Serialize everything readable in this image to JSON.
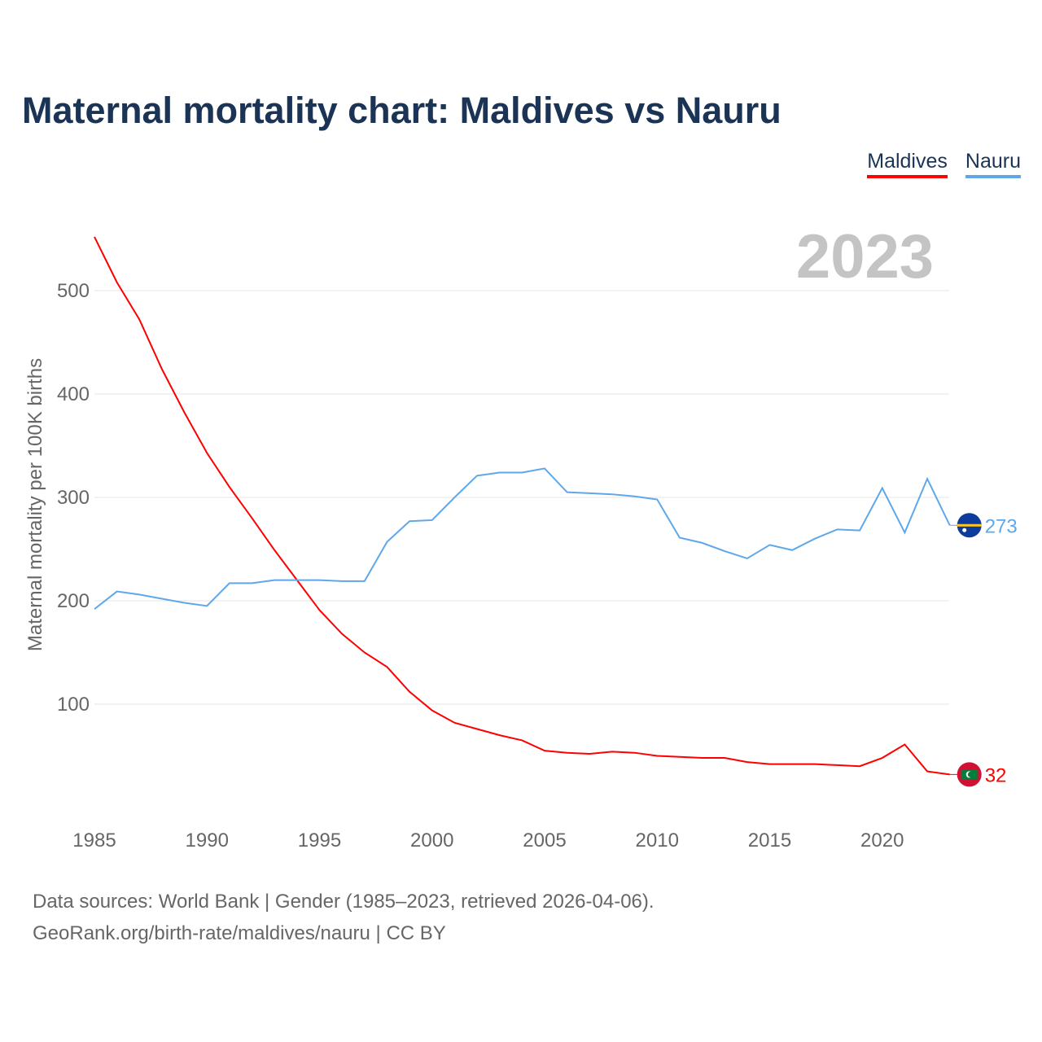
{
  "title": "Maternal mortality chart: Maldives vs Nauru",
  "year_label": "2023",
  "source_line1": "Data sources: World Bank | Gender (1985–2023, retrieved 2026-04-06).",
  "source_line2": "GeoRank.org/birth-rate/maldives/nauru | CC BY",
  "chart_data": {
    "type": "line",
    "title": "Maternal mortality chart: Maldives vs Nauru",
    "xlabel": "",
    "ylabel": "Maternal mortality per 100K births",
    "xlim": [
      1985,
      2023
    ],
    "ylim": [
      0,
      560
    ],
    "x_ticks": [
      1985,
      1990,
      1995,
      2000,
      2005,
      2010,
      2015,
      2020
    ],
    "y_ticks": [
      100,
      200,
      300,
      400,
      500
    ],
    "grid": true,
    "legend_placement": "top-right",
    "x": [
      1985,
      1986,
      1987,
      1988,
      1989,
      1990,
      1991,
      1992,
      1993,
      1994,
      1995,
      1996,
      1997,
      1998,
      1999,
      2000,
      2001,
      2002,
      2003,
      2004,
      2005,
      2006,
      2007,
      2008,
      2009,
      2010,
      2011,
      2012,
      2013,
      2014,
      2015,
      2016,
      2017,
      2018,
      2019,
      2020,
      2021,
      2022,
      2023
    ],
    "series": [
      {
        "name": "Maldives",
        "color": "#ff0000",
        "end_label": "32",
        "values": [
          552,
          508,
          472,
          424,
          382,
          343,
          310,
          280,
          249,
          220,
          191,
          168,
          150,
          136,
          112,
          94,
          82,
          76,
          70,
          65,
          55,
          53,
          52,
          54,
          53,
          50,
          49,
          48,
          48,
          44,
          42,
          42,
          42,
          41,
          40,
          48,
          61,
          35,
          32
        ]
      },
      {
        "name": "Nauru",
        "color": "#5ea8ea",
        "end_label": "273",
        "values": [
          192,
          209,
          206,
          202,
          198,
          195,
          217,
          217,
          220,
          220,
          220,
          219,
          219,
          257,
          277,
          278,
          300,
          321,
          324,
          324,
          328,
          305,
          304,
          303,
          301,
          298,
          261,
          256,
          248,
          241,
          254,
          249,
          260,
          269,
          268,
          309,
          266,
          318,
          273
        ]
      }
    ]
  }
}
